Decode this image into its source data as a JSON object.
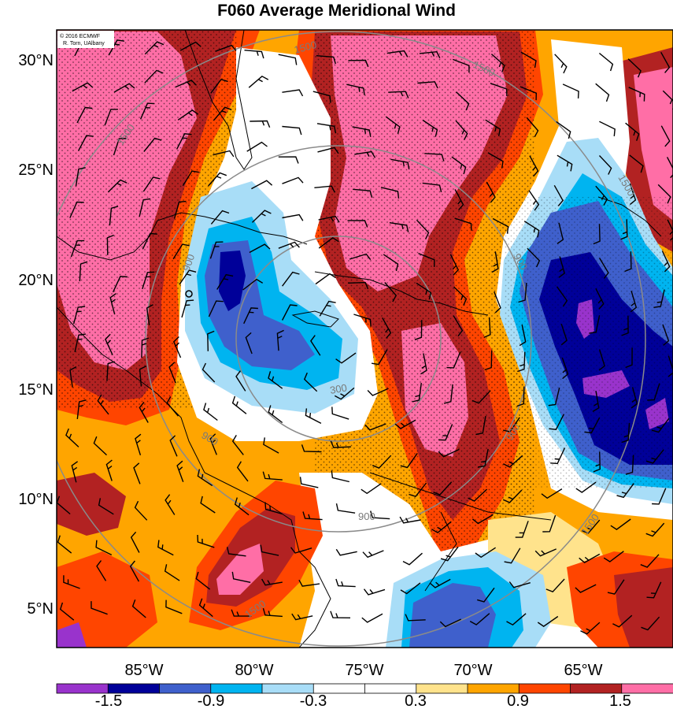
{
  "title": "F060 Average Meridional Wind",
  "credit": {
    "line1": "© 2016 ECMWF",
    "line2": "R. Torn, UAlbany"
  },
  "lat_labels": [
    "30°N",
    "25°N",
    "20°N",
    "15°N",
    "10°N",
    "5°N"
  ],
  "lon_labels": [
    "85°W",
    "80°W",
    "75°W",
    "70°W",
    "65°W"
  ],
  "contour_labels": [
    "1500",
    "900",
    "300",
    "900",
    "900",
    "1500",
    "1500",
    "1500",
    "900",
    "1500",
    "900",
    "1500"
  ],
  "colorbar": {
    "labels": [
      "-1.5",
      "-0.9",
      "-0.3",
      "0.3",
      "0.9",
      "1.5"
    ],
    "colors": [
      "#9933cc",
      "#000099",
      "#3f60cc",
      "#00b4f0",
      "#a8ddf7",
      "#ffffff",
      "#ffffff",
      "#ffe38c",
      "#ffa500",
      "#ff4500",
      "#b22222",
      "#ff6ea6"
    ]
  },
  "colors": {
    "strong_positive": "#ff6ea6",
    "positive": "#b22222",
    "moderate_positive": "#ff4500",
    "weak_positive": "#ffa500",
    "slight_positive": "#ffe38c",
    "neutral": "#ffffff",
    "slight_negative": "#a8ddf7",
    "weak_negative": "#00b4f0",
    "moderate_negative": "#3f60cc",
    "strong_negative": "#000099",
    "extreme_negative": "#9933cc",
    "range_ring": "#8a8a8a"
  },
  "storm_marker_icon": "storm-center-icon"
}
